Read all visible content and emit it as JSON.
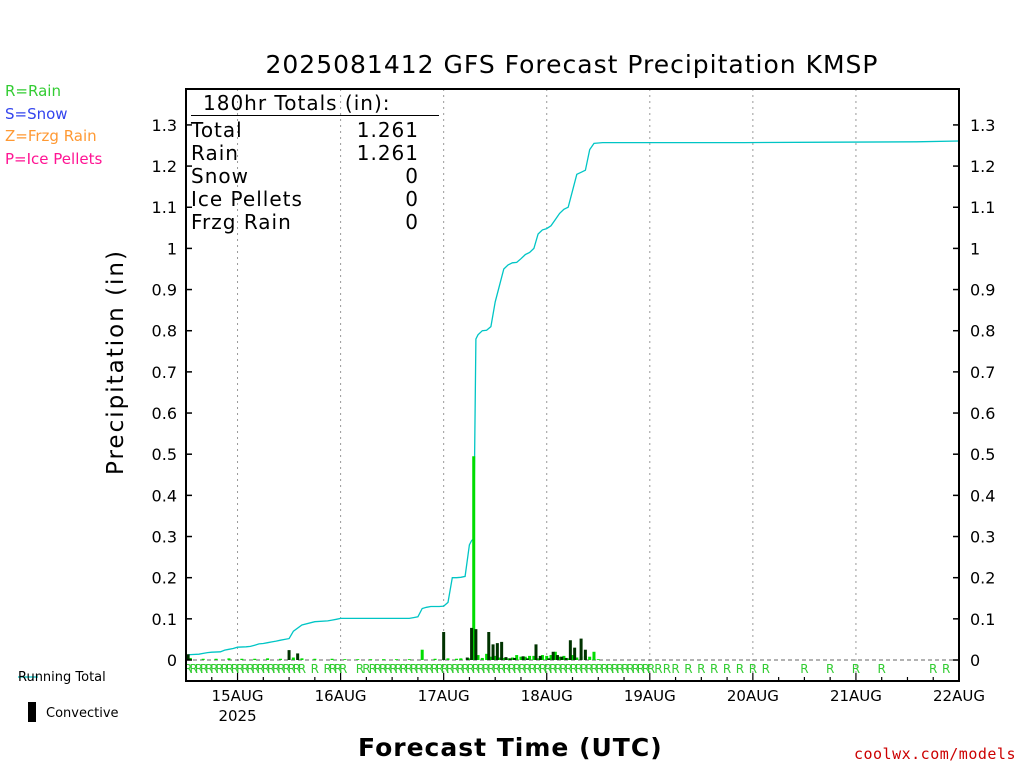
{
  "legend_top": [
    {
      "label": "R=Rain",
      "color": "#33cc33"
    },
    {
      "label": "S=Snow",
      "color": "#3344ee"
    },
    {
      "label": "Z=Frzg Rain",
      "color": "#ff9933"
    },
    {
      "label": "P=Ice Pellets",
      "color": "#ff1493"
    }
  ],
  "bottom_legend": {
    "running_total": "Running Total",
    "convective": "Convective"
  },
  "credit": "coolwx.com/models",
  "colors": {
    "running_total": "#00c5c5",
    "rain_bar": "#00dd00",
    "convective_bar": "#003300",
    "rain_marker": "#33cc33"
  },
  "chart_data": {
    "type": "bar",
    "title": "2025081412 GFS Forecast Precipitation KMSP",
    "xlabel": "Forecast Time (UTC)",
    "ylabel": "Precipitation (in)",
    "ylim": [
      0,
      1.38
    ],
    "yticks": [
      "0",
      "0.1",
      "0.2",
      "0.3",
      "0.4",
      "0.5",
      "0.6",
      "0.7",
      "0.8",
      "0.9",
      "1",
      "1.1",
      "1.2",
      "1.3"
    ],
    "x_unit": "forecast hour",
    "xlim": [
      0,
      180
    ],
    "xticks": [
      {
        "hour": 12,
        "label": "15AUG",
        "sub": "2025"
      },
      {
        "hour": 36,
        "label": "16AUG",
        "sub": ""
      },
      {
        "hour": 60,
        "label": "17AUG",
        "sub": ""
      },
      {
        "hour": 84,
        "label": "18AUG",
        "sub": ""
      },
      {
        "hour": 108,
        "label": "19AUG",
        "sub": ""
      },
      {
        "hour": 132,
        "label": "20AUG",
        "sub": ""
      },
      {
        "hour": 156,
        "label": "21AUG",
        "sub": ""
      },
      {
        "hour": 180,
        "label": "22AUG",
        "sub": ""
      }
    ],
    "grid": "dotted vertical at day boundaries",
    "totals_box": {
      "header": "180hr Totals (in):",
      "rows": [
        {
          "label": "Total",
          "value": "1.261"
        },
        {
          "label": "Rain",
          "value": "1.261"
        },
        {
          "label": "Snow",
          "value": "0"
        },
        {
          "label": "Ice Pellets",
          "value": "0"
        },
        {
          "label": "Frzg Rain",
          "value": "0"
        }
      ]
    },
    "running_total": {
      "name": "Running Total",
      "x": [
        0,
        1,
        3,
        4,
        5,
        6,
        8,
        9,
        10,
        11,
        12,
        14,
        15,
        16,
        17,
        18,
        19,
        20,
        21,
        22,
        23,
        24,
        25,
        27,
        30,
        33,
        34,
        35,
        36,
        40,
        48,
        52,
        53,
        54,
        55,
        56,
        57,
        58,
        59,
        60,
        61,
        62,
        63,
        64,
        65,
        66,
        66.5,
        67,
        67.5,
        68,
        69,
        70,
        71,
        72,
        73,
        74,
        75,
        76,
        77,
        78,
        79,
        80,
        81,
        82,
        83,
        84,
        85,
        86,
        87,
        88,
        89,
        90,
        91,
        92,
        93,
        94,
        95,
        96,
        97,
        99,
        110,
        130,
        150,
        170,
        180
      ],
      "values": [
        0.011,
        0.013,
        0.014,
        0.016,
        0.018,
        0.019,
        0.02,
        0.024,
        0.026,
        0.028,
        0.031,
        0.032,
        0.033,
        0.036,
        0.039,
        0.04,
        0.042,
        0.044,
        0.046,
        0.048,
        0.05,
        0.052,
        0.07,
        0.085,
        0.093,
        0.095,
        0.097,
        0.099,
        0.101,
        0.101,
        0.101,
        0.101,
        0.103,
        0.105,
        0.125,
        0.128,
        0.13,
        0.13,
        0.13,
        0.131,
        0.14,
        0.2,
        0.2,
        0.201,
        0.203,
        0.28,
        0.29,
        0.295,
        0.78,
        0.79,
        0.8,
        0.801,
        0.81,
        0.87,
        0.91,
        0.95,
        0.96,
        0.965,
        0.966,
        0.975,
        0.985,
        0.99,
        1.0,
        1.035,
        1.045,
        1.048,
        1.055,
        1.07,
        1.085,
        1.095,
        1.1,
        1.14,
        1.18,
        1.185,
        1.19,
        1.24,
        1.255,
        1.256,
        1.257,
        1.257,
        1.257,
        1.257,
        1.258,
        1.259,
        1.261
      ]
    },
    "series": [
      {
        "name": "Rain",
        "x": [
          1,
          4,
          7,
          10,
          13,
          16,
          19,
          22,
          25,
          27,
          30,
          34,
          37,
          40,
          43,
          46,
          49,
          52,
          55,
          58,
          61,
          63,
          64,
          66,
          67,
          68,
          69,
          70,
          71,
          72,
          73,
          74,
          75,
          76,
          77,
          78,
          79,
          80,
          81,
          82,
          83,
          84,
          85,
          86,
          87,
          88,
          89,
          90,
          91,
          92,
          93,
          94,
          95,
          96
        ],
        "values": [
          0.005,
          0.003,
          0.003,
          0.004,
          0.003,
          0.003,
          0.004,
          0.003,
          0.006,
          0.004,
          0.003,
          0.003,
          0.002,
          0.002,
          0.002,
          0.002,
          0.002,
          0.002,
          0.025,
          0.003,
          0.004,
          0.003,
          0.004,
          0.004,
          0.495,
          0.012,
          0.005,
          0.015,
          0.008,
          0.01,
          0.006,
          0.005,
          0.004,
          0.006,
          0.012,
          0.008,
          0.008,
          0.01,
          0.01,
          0.004,
          0.012,
          0.01,
          0.012,
          0.02,
          0.008,
          0.01,
          0.004,
          0.012,
          0.006,
          0.008,
          0.01,
          0.008,
          0.02,
          0.002
        ]
      },
      {
        "name": "Convective",
        "x": [
          0.5,
          24,
          26,
          60,
          65.5,
          66.5,
          67.5,
          70.5,
          71.5,
          72.5,
          73.5,
          74.5,
          75.5,
          76.5,
          78.5,
          79.5,
          81.5,
          82.5,
          84.5,
          85.5,
          86.5,
          87.5,
          88.5,
          89.5,
          90.5,
          92,
          93
        ],
        "values": [
          0.014,
          0.024,
          0.016,
          0.068,
          0.006,
          0.078,
          0.075,
          0.068,
          0.038,
          0.041,
          0.044,
          0.007,
          0.004,
          0.005,
          0.009,
          0.004,
          0.038,
          0.01,
          0.004,
          0.02,
          0.012,
          0.008,
          0.005,
          0.048,
          0.03,
          0.052,
          0.025
        ]
      }
    ],
    "ptype_markers": {
      "symbol": "R",
      "x": [
        0.5,
        1.8,
        3,
        4.2,
        5.4,
        6.6,
        7.8,
        9,
        10.2,
        11.4,
        12.6,
        13.8,
        15,
        16.2,
        17.4,
        18.6,
        19.8,
        21,
        22.2,
        23.4,
        24.6,
        25.8,
        27,
        30,
        33,
        34.2,
        35.4,
        36.6,
        40.5,
        42,
        43.5,
        44.7,
        45.9,
        47.1,
        48.3,
        49.5,
        50.7,
        51.9,
        53.1,
        54.3,
        55.5,
        56.7,
        57.9,
        59.1,
        60.3,
        61.5,
        62.7,
        63.9,
        65.1,
        66.3,
        67.5,
        68.7,
        69.9,
        71.1,
        72.3,
        73.5,
        74.7,
        75.9,
        77.1,
        78.3,
        79.5,
        80.7,
        81.9,
        83.1,
        84.3,
        85.5,
        86.7,
        87.9,
        89.1,
        90.3,
        91.5,
        92.7,
        93.9,
        95.1,
        96.3,
        97.5,
        98.7,
        99.9,
        101.1,
        102.3,
        103.5,
        104.7,
        105.9,
        107.1,
        108.3,
        110,
        112,
        114,
        117,
        120,
        123,
        126,
        129,
        132,
        135,
        144,
        150,
        156,
        162,
        174,
        177
      ]
    }
  }
}
